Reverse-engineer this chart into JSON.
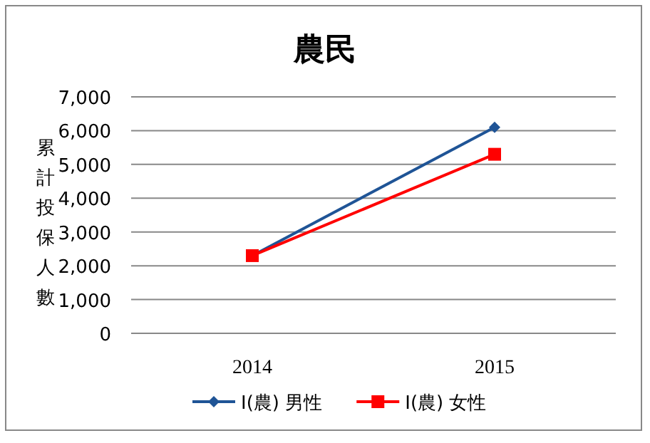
{
  "chart_data": {
    "type": "line",
    "title": "農民",
    "ylabel": "累計投保人數",
    "categories": [
      "2014",
      "2015"
    ],
    "series": [
      {
        "name": "I(農) 男性",
        "color": "#1f5496",
        "marker": "diamond",
        "values": [
          2300,
          6100
        ]
      },
      {
        "name": "I(農) 女性",
        "color": "#ff0000",
        "marker": "square",
        "values": [
          2300,
          5300
        ]
      }
    ],
    "ylim": [
      0,
      7000
    ],
    "yticks": [
      {
        "value": 0,
        "label": "0"
      },
      {
        "value": 1000,
        "label": "1,000"
      },
      {
        "value": 2000,
        "label": "2,000"
      },
      {
        "value": 3000,
        "label": "3,000"
      },
      {
        "value": 4000,
        "label": "4,000"
      },
      {
        "value": 5000,
        "label": "5,000"
      },
      {
        "value": 6000,
        "label": "6,000"
      },
      {
        "value": 7000,
        "label": "7,000"
      }
    ],
    "grid": "y",
    "legend": "bottom"
  }
}
